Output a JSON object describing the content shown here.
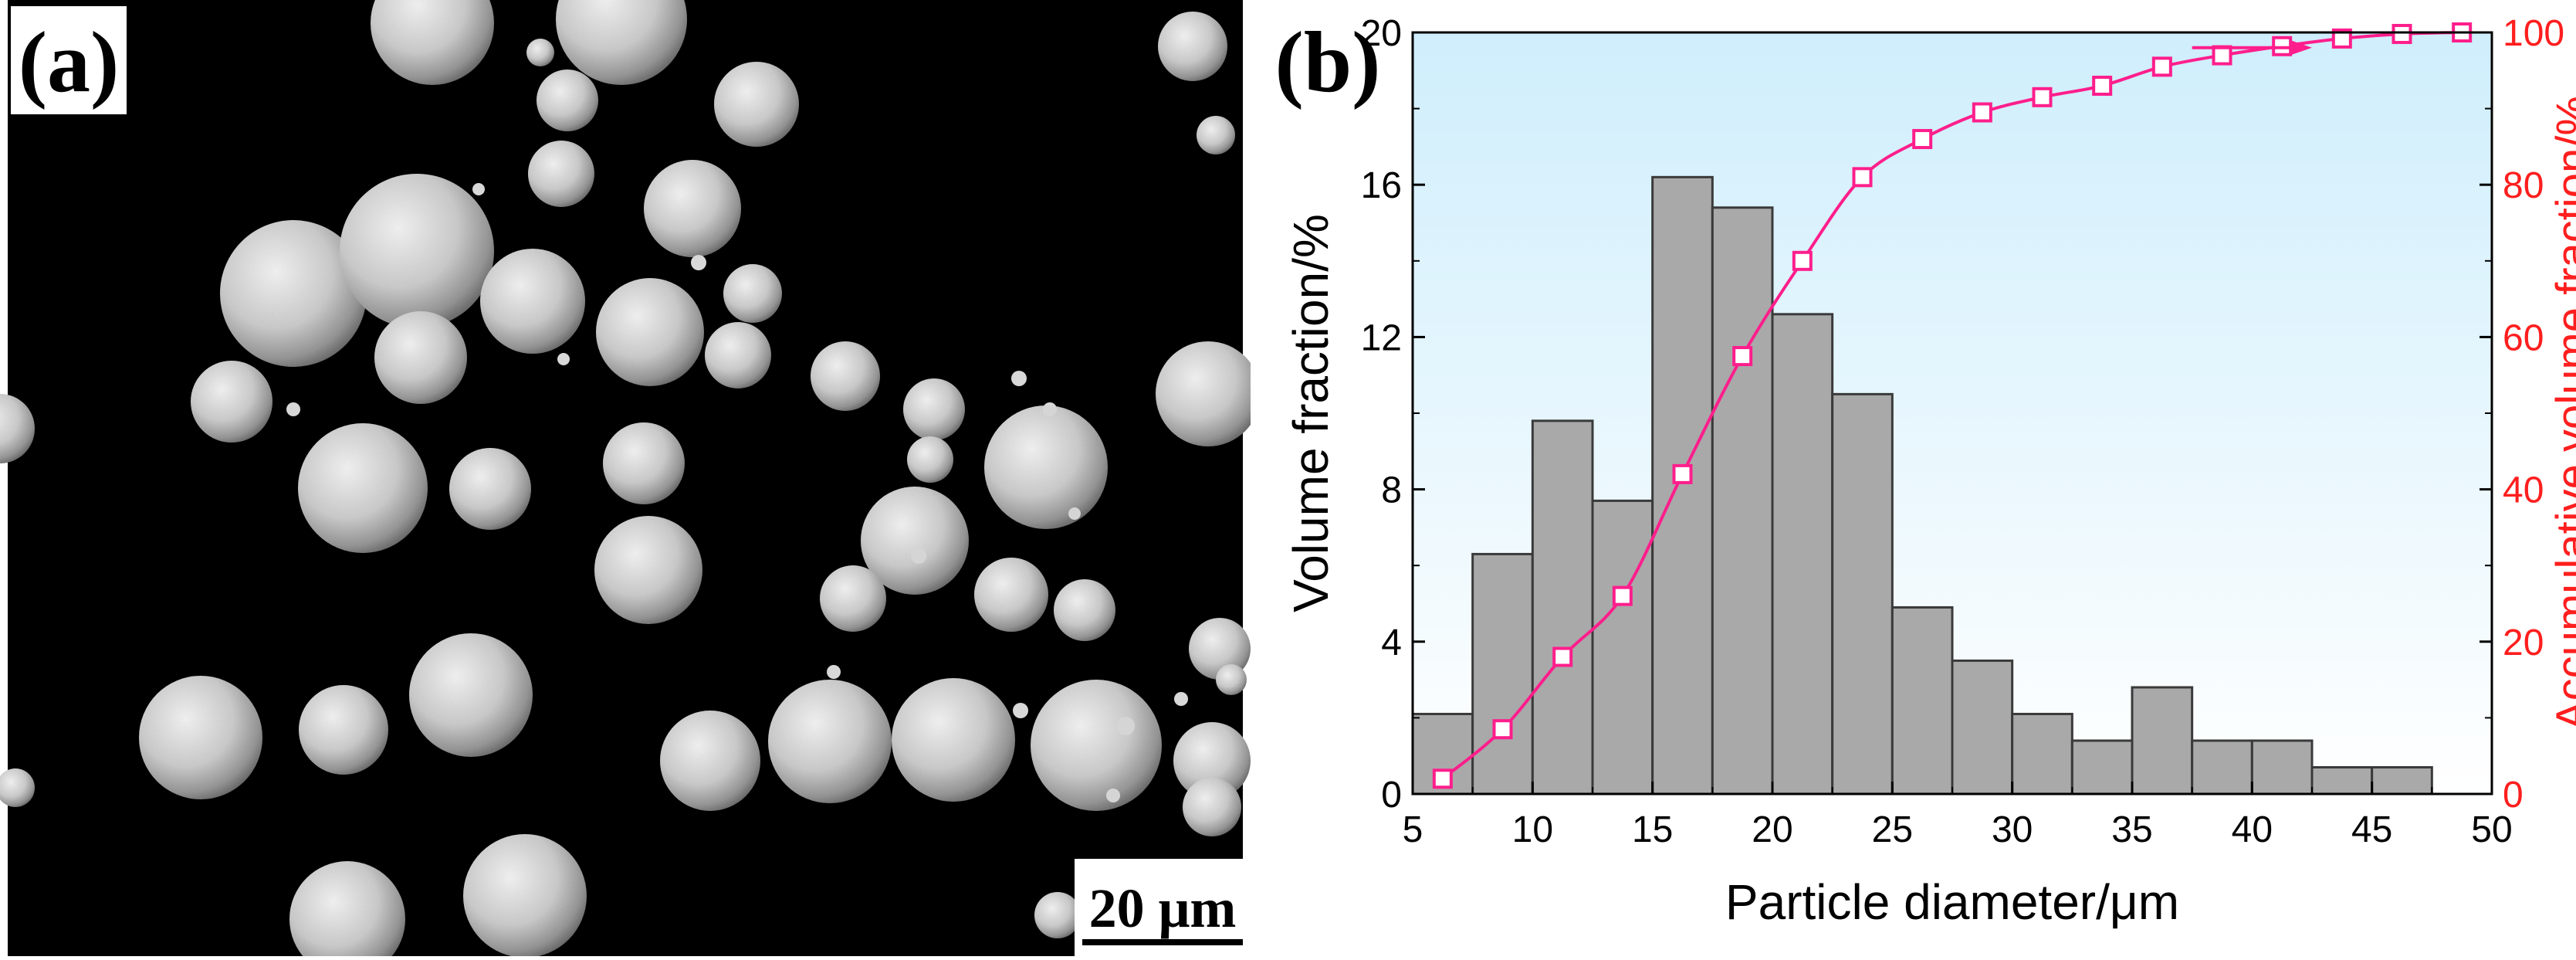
{
  "panel_a": {
    "label": "(a)",
    "scale_bar_label": "20 μm",
    "image_description_icon": "sem-micrograph-spherical-particles"
  },
  "panel_b": {
    "label": "(b)"
  },
  "colors": {
    "bar_fill": "#a9a9a9",
    "bar_stroke": "#3a3a3a",
    "cumulative_line": "#ff1e8c",
    "right_axis_label": "#ff1e1e",
    "plot_bg_top": "#cfeefc",
    "plot_bg_bottom": "#ffffff"
  },
  "chart_data": {
    "type": "bar",
    "xlabel": "Particle diameter/μm",
    "ylabel": "Volume fraction/%",
    "ylabel_right": "Accumulative volume fraction/%",
    "xlim": [
      5,
      50
    ],
    "ylim": [
      0,
      20
    ],
    "ylim_right": [
      0,
      100
    ],
    "x_ticks": [
      5,
      10,
      15,
      20,
      25,
      30,
      35,
      40,
      45,
      50
    ],
    "y_ticks": [
      0,
      4,
      8,
      12,
      16,
      20
    ],
    "y_ticks_right": [
      0,
      20,
      40,
      60,
      80,
      100
    ],
    "grid": false,
    "bars": {
      "x": [
        6.25,
        8.75,
        11.25,
        13.75,
        16.25,
        18.75,
        21.25,
        23.75,
        26.25,
        28.75,
        31.25,
        33.75,
        36.25,
        38.75,
        41.25,
        43.75,
        46.25
      ],
      "width": 2.5,
      "values": [
        2.1,
        6.3,
        9.8,
        7.7,
        16.2,
        15.4,
        12.6,
        10.5,
        4.9,
        3.5,
        2.1,
        1.4,
        2.8,
        1.4,
        1.4,
        0.7,
        0.7
      ]
    },
    "series": [
      {
        "axis": "right",
        "type": "line",
        "marker": "open-square",
        "x": [
          6.25,
          8.75,
          11.25,
          13.75,
          16.25,
          18.75,
          21.25,
          23.75,
          26.25,
          28.75,
          31.25,
          33.75,
          36.25,
          38.75,
          41.25,
          43.75,
          46.25,
          48.75
        ],
        "values": [
          2,
          8.5,
          18,
          26,
          42,
          57.5,
          70,
          81,
          86,
          89.5,
          91.5,
          93,
          95.5,
          97,
          98.2,
          99.2,
          99.8,
          100
        ]
      }
    ],
    "annotation": {
      "type": "arrow",
      "direction": "right",
      "points_to_axis": "right",
      "from_x": 37.5,
      "to_x": 42.5,
      "y_right": 98
    }
  }
}
